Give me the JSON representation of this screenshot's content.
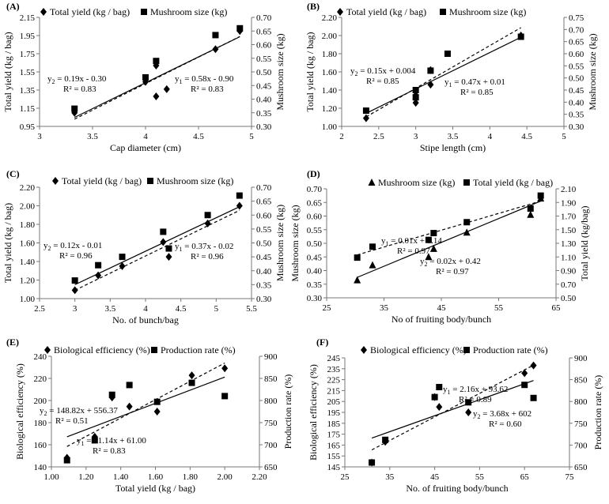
{
  "chart_data": [
    {
      "type": "scatter",
      "panel_label": "(A)",
      "xlabel": "Cap diameter (cm)",
      "ylabel": "Total yield (kg / bag)",
      "y2label": "Mushroom size (kg)",
      "xlim": [
        3,
        5
      ],
      "ylim": [
        0.95,
        2.15
      ],
      "y2lim": [
        0.3,
        0.7
      ],
      "xticks": [
        "3",
        "3.5",
        "4",
        "4.5",
        "5"
      ],
      "yticks": [
        "0.95",
        "1.15",
        "1.35",
        "1.55",
        "1.75",
        "1.95",
        "2.15"
      ],
      "y2ticks": [
        "0.30",
        "0.35",
        "0.40",
        "0.45",
        "0.50",
        "0.55",
        "0.60",
        "0.65",
        "0.70"
      ],
      "series": [
        {
          "name": "Total yield (kg / bag)",
          "marker": "diamond",
          "axis": "left",
          "x": [
            3.33,
            4.0,
            4.1,
            4.1,
            4.2,
            4.66,
            4.89
          ],
          "y": [
            1.1,
            1.44,
            1.28,
            1.62,
            1.36,
            1.8,
            2.0
          ]
        },
        {
          "name": "Mushroom size (kg)",
          "marker": "square",
          "axis": "right",
          "x": [
            3.33,
            4.0,
            4.1,
            4.66,
            4.89
          ],
          "y": [
            0.365,
            0.48,
            0.54,
            0.635,
            0.66
          ]
        }
      ],
      "trendlines": [
        {
          "style": "solid",
          "axis": "right",
          "x": [
            3.33,
            4.89
          ],
          "y": [
            0.333,
            0.629
          ]
        },
        {
          "style": "dashed",
          "axis": "left",
          "x": [
            3.33,
            4.89
          ],
          "y": [
            1.03,
            1.94
          ]
        }
      ],
      "annotations": [
        {
          "line1": "y",
          "sub": "2",
          "rest": " = 0.19x - 0.30",
          "line2": "R² = 0.83"
        },
        {
          "line1": "y",
          "sub": "1",
          "rest": " = 0.58x - 0.90",
          "line2": "R² = 0.83"
        }
      ]
    },
    {
      "type": "scatter",
      "panel_label": "(B)",
      "xlabel": "Stipe length (cm)",
      "ylabel": "Total yield (kg / bag)",
      "y2label": "Mushroom size (kg)",
      "xlim": [
        2,
        5
      ],
      "ylim": [
        1.0,
        2.2
      ],
      "y2lim": [
        0.3,
        0.75
      ],
      "xticks": [
        "2",
        "2.5",
        "3",
        "3.5",
        "4",
        "4.5",
        "5"
      ],
      "yticks": [
        "1.00",
        "1.20",
        "1.40",
        "1.60",
        "1.80",
        "2.00",
        "2.20"
      ],
      "y2ticks": [
        "0.30",
        "0.35",
        "0.40",
        "0.45",
        "0.50",
        "0.55",
        "0.60",
        "0.65",
        "0.70",
        "0.75"
      ],
      "series": [
        {
          "name": "Total yield (kg / bag)",
          "marker": "diamond",
          "axis": "left",
          "x": [
            2.33,
            3.0,
            3.0,
            3.0,
            3.2,
            3.2,
            4.42
          ],
          "y": [
            1.09,
            1.26,
            1.31,
            1.38,
            1.46,
            1.62,
            2.0
          ]
        },
        {
          "name": "Mushroom size (kg)",
          "marker": "square",
          "axis": "right",
          "x": [
            2.33,
            3.0,
            3.0,
            3.2,
            3.43,
            4.42
          ],
          "y": [
            0.365,
            0.42,
            0.45,
            0.53,
            0.6,
            0.67
          ]
        },
        {
          "name": "",
          "marker": "diamond",
          "axis": "left",
          "x": [
            3.0
          ],
          "y": [
            1.34
          ]
        }
      ],
      "trendlines": [
        {
          "style": "solid",
          "axis": "right",
          "x": [
            2.33,
            4.42
          ],
          "y": [
            0.354,
            0.668
          ]
        },
        {
          "style": "dashed",
          "axis": "left",
          "x": [
            2.33,
            4.42
          ],
          "y": [
            1.105,
            2.087
          ]
        }
      ],
      "annotations": [
        {
          "line1": "y",
          "sub": "2",
          "rest": " = 0.15x + 0.004",
          "line2": "R² = 0.85"
        },
        {
          "line1": "y",
          "sub": "1",
          "rest": " = 0.47x + 0.01",
          "line2": "R² = 0.85"
        }
      ]
    },
    {
      "type": "scatter",
      "panel_label": "(C)",
      "xlabel": "No. of bunch/bag",
      "ylabel": "Total yield (kg / bag)",
      "y2label": "Mushroom size (kg)",
      "xlim": [
        2.5,
        5.5
      ],
      "ylim": [
        1.0,
        2.2
      ],
      "y2lim": [
        0.3,
        0.7
      ],
      "xticks": [
        "2.5",
        "3",
        "3.5",
        "4",
        "4.5",
        "5",
        "5.5"
      ],
      "yticks": [
        "1.00",
        "1.20",
        "1.40",
        "1.60",
        "1.80",
        "2.00",
        "2.20"
      ],
      "y2ticks": [
        "0.30",
        "0.35",
        "0.40",
        "0.45",
        "0.50",
        "0.55",
        "0.60",
        "0.65",
        "0.70"
      ],
      "series": [
        {
          "name": "Total yield (kg / bag)",
          "marker": "diamond",
          "axis": "left",
          "x": [
            3.0,
            3.33,
            3.67,
            4.25,
            4.33,
            4.88,
            5.33
          ],
          "y": [
            1.09,
            1.25,
            1.35,
            1.61,
            1.45,
            1.81,
            2.0
          ]
        },
        {
          "name": "Mushroom size (kg)",
          "marker": "square",
          "axis": "right",
          "x": [
            3.0,
            3.33,
            3.67,
            4.25,
            4.33,
            4.88,
            5.33
          ],
          "y": [
            0.365,
            0.42,
            0.45,
            0.54,
            0.48,
            0.6,
            0.67
          ]
        }
      ],
      "trendlines": [
        {
          "style": "solid",
          "axis": "right",
          "x": [
            3.0,
            5.33
          ],
          "y": [
            0.35,
            0.63
          ]
        },
        {
          "style": "dashed",
          "axis": "left",
          "x": [
            3.0,
            5.33
          ],
          "y": [
            1.09,
            1.95
          ]
        }
      ],
      "annotations": [
        {
          "line1": "y",
          "sub": "2",
          "rest": " = 0.12x - 0.01",
          "line2": "R² = 0.96"
        },
        {
          "line1": "y",
          "sub": "1",
          "rest": " = 0.37x - 0.02",
          "line2": "R² = 0.96"
        }
      ]
    },
    {
      "type": "scatter",
      "panel_label": "(D)",
      "xlabel": "No of fruiting body/bunch",
      "ylabel": "Mushroom size (kg)",
      "y2label": "Total yield (kg/bag)",
      "xlim": [
        25,
        70
      ],
      "ylim": [
        0.3,
        0.7
      ],
      "y2lim": [
        0.5,
        2.1
      ],
      "xticks": [
        "25",
        "35",
        "45",
        "55",
        "65"
      ],
      "yticks": [
        "0.30",
        "0.35",
        "0.40",
        "0.45",
        "0.50",
        "0.55",
        "0.60",
        "0.65",
        "0.70"
      ],
      "y2ticks": [
        "0.50",
        "0.70",
        "0.90",
        "1.10",
        "1.30",
        "1.50",
        "1.70",
        "1.90",
        "2.10"
      ],
      "series": [
        {
          "name": "Mushroom size (kg)",
          "marker": "triangle",
          "axis": "left",
          "x": [
            31,
            34,
            45,
            46,
            52.5,
            65,
            67
          ],
          "y": [
            0.365,
            0.42,
            0.45,
            0.48,
            0.54,
            0.605,
            0.665
          ]
        },
        {
          "name": "Total yield (kg / bag)",
          "marker": "square",
          "axis": "right",
          "x": [
            31,
            34,
            45,
            46,
            52.5,
            65,
            67
          ],
          "y": [
            1.09,
            1.25,
            1.35,
            1.45,
            1.61,
            1.81,
            2.0
          ]
        }
      ],
      "trendlines": [
        {
          "style": "solid",
          "axis": "left",
          "x": [
            31,
            67
          ],
          "y": [
            0.375,
            0.655
          ]
        },
        {
          "style": "dashed",
          "axis": "right",
          "x": [
            31,
            67
          ],
          "y": [
            1.13,
            1.92
          ]
        }
      ],
      "annotations": [
        {
          "line1": "y",
          "sub": "1",
          "rest": " = 0.01x + 0.14",
          "line2": "R² = 0.97"
        },
        {
          "line1": "y",
          "sub": "2",
          "rest": " = 0.02x + 0.42",
          "line2": "R² = 0.97"
        }
      ]
    },
    {
      "type": "scatter",
      "panel_label": "(E)",
      "xlabel": "Total yield (kg / bag)",
      "ylabel": "Biological efficiency (%)",
      "y2label": "Production rate (%)",
      "xlim": [
        1.0,
        2.2
      ],
      "ylim": [
        140,
        250
      ],
      "y2lim": [
        650,
        900
      ],
      "xticks": [
        "1.00",
        "1.20",
        "1.40",
        "1.60",
        "1.80",
        "2.00",
        "2.20"
      ],
      "yticks": [
        "140",
        "160",
        "180",
        "200",
        "220",
        "240"
      ],
      "y2ticks": [
        "650",
        "700",
        "750",
        "800",
        "850",
        "900"
      ],
      "series": [
        {
          "name": "Biological efficiency (%)",
          "marker": "diamond",
          "axis": "left",
          "x": [
            1.09,
            1.25,
            1.35,
            1.45,
            1.61,
            1.81,
            2.0
          ],
          "y": [
            149,
            170,
            209,
            200,
            195,
            231,
            238
          ]
        },
        {
          "name": "Production rate (%)",
          "marker": "square",
          "axis": "right",
          "x": [
            1.09,
            1.25,
            1.35,
            1.45,
            1.61,
            1.81,
            2.0
          ],
          "y": [
            665,
            710,
            813,
            835,
            797,
            840,
            810
          ]
        }
      ],
      "trendlines": [
        {
          "style": "solid",
          "axis": "right",
          "x": [
            1.09,
            2.0
          ],
          "y": [
            718,
            853
          ]
        },
        {
          "style": "dashed",
          "axis": "left",
          "x": [
            1.09,
            2.0
          ],
          "y": [
            160.3,
            243.3
          ]
        }
      ],
      "annotations": [
        {
          "line1": "y",
          "sub": "2",
          "rest": " = 148.82x + 556.37",
          "line2": "R² = 0.51"
        },
        {
          "line1": "y",
          "sub": "1",
          "rest": " = 91.14x + 61.00",
          "line2": "R² = 0.83"
        }
      ]
    },
    {
      "type": "scatter",
      "panel_label": "(F)",
      "xlabel": "No. of fruiting body/bunch",
      "ylabel": "Biological efficiency (%)",
      "y2label": "Production rate (%)",
      "xlim": [
        25,
        75
      ],
      "ylim": [
        145,
        245
      ],
      "y2lim": [
        650,
        900
      ],
      "xticks": [
        "25",
        "35",
        "45",
        "55",
        "65",
        "75"
      ],
      "yticks": [
        "145",
        "155",
        "165",
        "175",
        "185",
        "195",
        "205",
        "215",
        "225",
        "235",
        "245"
      ],
      "y2ticks": [
        "650",
        "700",
        "750",
        "800",
        "850",
        "900"
      ],
      "series": [
        {
          "name": "Biological efficiency (%)",
          "marker": "diamond",
          "axis": "left",
          "x": [
            31,
            34,
            45,
            46,
            52.5,
            65,
            67
          ],
          "y": [
            149,
            168,
            209,
            200,
            195,
            231,
            238
          ]
        },
        {
          "name": "Production rate (%)",
          "marker": "square",
          "axis": "right",
          "x": [
            31,
            34,
            45,
            46,
            52.5,
            65,
            67
          ],
          "y": [
            660,
            712,
            810,
            833,
            798,
            838,
            808
          ]
        }
      ],
      "trendlines": [
        {
          "style": "solid",
          "axis": "right",
          "x": [
            31,
            67
          ],
          "y": [
            716,
            848
          ]
        },
        {
          "style": "dashed",
          "axis": "left",
          "x": [
            31,
            67
          ],
          "y": [
            160.6,
            238.3
          ]
        }
      ],
      "annotations": [
        {
          "line1": "y",
          "sub": "1",
          "rest": " = 2.16x + 93.62",
          "line2": "R² = 0.89"
        },
        {
          "line1": "y",
          "sub": "2",
          "rest": " = 3.68x + 602",
          "line2": "R² = 0.60"
        }
      ]
    }
  ]
}
